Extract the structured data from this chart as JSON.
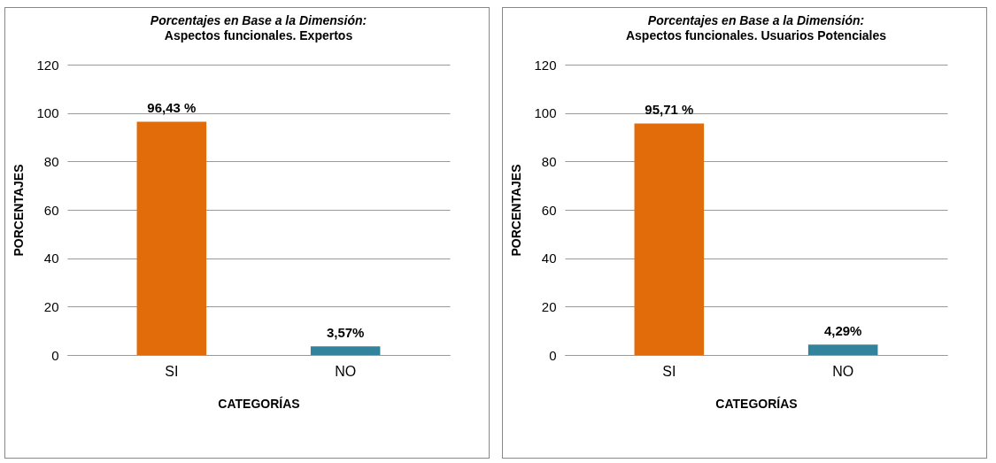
{
  "chart_data": [
    {
      "type": "bar",
      "title": "Porcentajes en Base a la Dimensión:",
      "subtitle": "Aspectos funcionales. Expertos",
      "xlabel": "CATEGORÍAS",
      "ylabel": "PORCENTAJES",
      "categories": [
        "SI",
        "NO"
      ],
      "values": [
        96.43,
        3.57
      ],
      "colors": [
        "#e36c0a",
        "#31849b"
      ],
      "value_labels": [
        "96,43 %",
        "3,57%"
      ],
      "ylim": [
        0,
        120
      ],
      "yticks": [
        0,
        20,
        40,
        60,
        80,
        100,
        120
      ],
      "grid": "y"
    },
    {
      "type": "bar",
      "title": "Porcentajes en Base a la Dimensión:",
      "subtitle": "Aspectos funcionales. Usuarios Potenciales",
      "xlabel": "CATEGORÍAS",
      "ylabel": "PORCENTAJES",
      "categories": [
        "SI",
        "NO"
      ],
      "values": [
        95.71,
        4.29
      ],
      "colors": [
        "#e36c0a",
        "#31849b"
      ],
      "value_labels": [
        "95,71 %",
        "4,29%"
      ],
      "ylim": [
        0,
        120
      ],
      "yticks": [
        0,
        20,
        40,
        60,
        80,
        100,
        120
      ],
      "grid": "y"
    }
  ]
}
